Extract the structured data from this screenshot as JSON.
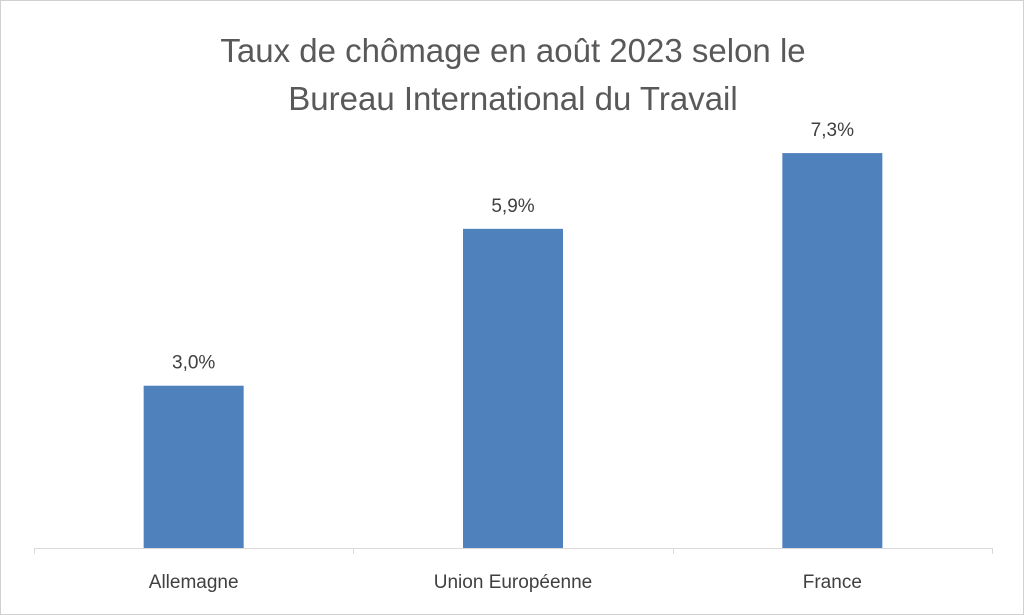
{
  "chart_data": {
    "type": "bar",
    "title": "Taux de chômage en août 2023 selon le Bureau International du Travail",
    "title_lines": [
      "Taux de chômage en août 2023 selon le",
      "Bureau International du Travail"
    ],
    "categories": [
      "Allemagne",
      "Union Européenne",
      "France"
    ],
    "values": [
      3.0,
      5.9,
      7.3
    ],
    "data_labels": [
      "3,0%",
      "5,9%",
      "7,3%"
    ],
    "unit": "%",
    "xlabel": "",
    "ylabel": "",
    "ylim": [
      0,
      8.3
    ],
    "grid": false,
    "legend": "none",
    "bar_color": "#4f81bd",
    "axis_color": "#d9d9d9",
    "text_color": "#404040",
    "title_color": "#595959"
  }
}
